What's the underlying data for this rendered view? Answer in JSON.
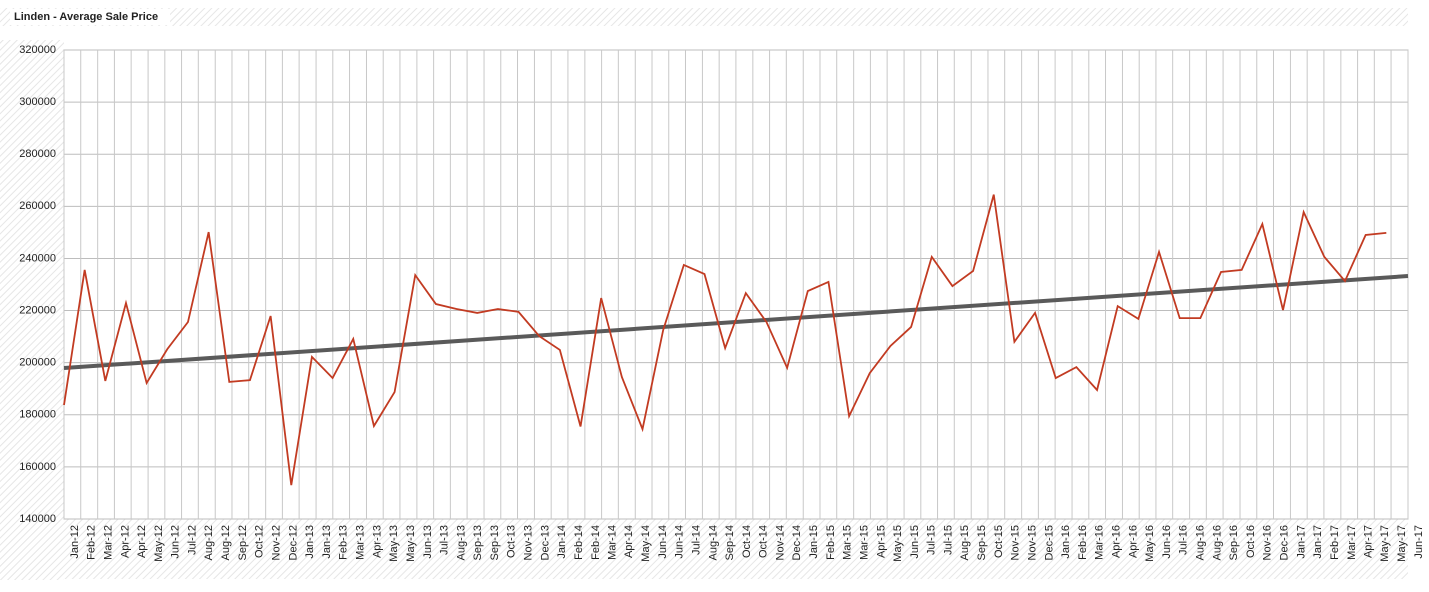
{
  "chart_data": {
    "type": "line",
    "title": "Linden - Average Sale Price",
    "x": [
      0,
      1,
      2,
      3,
      4,
      5,
      6,
      7,
      8,
      9,
      10,
      11,
      12,
      13,
      14,
      15,
      16,
      17,
      18,
      19,
      20,
      21,
      22,
      23,
      24,
      25,
      26,
      27,
      28,
      29,
      30,
      31,
      32,
      33,
      34,
      35,
      36,
      37,
      38,
      39,
      40,
      41,
      42,
      43,
      44,
      45,
      46,
      47,
      48,
      49,
      50,
      51,
      52,
      53,
      54,
      55,
      56,
      57,
      58,
      59,
      60,
      61,
      62,
      63,
      64
    ],
    "series": [
      {
        "color": "#c23b22",
        "values": [
          183750,
          235600,
          193000,
          222900,
          192200,
          205200,
          215600,
          250100,
          192600,
          193300,
          217900,
          153000,
          202200,
          194100,
          209100,
          175700,
          188700,
          233600,
          222500,
          220600,
          219100,
          220600,
          219500,
          210200,
          204900,
          175500,
          224800,
          194500,
          174500,
          212500,
          237500,
          234000,
          205600,
          226700,
          215600,
          198000,
          227500,
          231000,
          179500,
          196000,
          206400,
          213700,
          240600,
          229400,
          235200,
          264500,
          208000,
          219100,
          194100,
          198300,
          189500,
          221700,
          216800,
          242500,
          217100,
          217100,
          234800,
          235600,
          253200,
          220200,
          257800,
          240600,
          231300,
          249000,
          249800
        ]
      }
    ],
    "trendline": {
      "color": "#5a5a5a",
      "x": [
        0,
        65.05
      ],
      "values": [
        197950,
        233260
      ]
    },
    "xlim": [
      0,
      65.05
    ],
    "xticks": [
      {
        "value": 0,
        "label": "Jan-12"
      },
      {
        "value": 0.81,
        "label": "Feb-12"
      },
      {
        "value": 1.63,
        "label": "Mar-12"
      },
      {
        "value": 2.44,
        "label": "Apr-12"
      },
      {
        "value": 3.25,
        "label": "Apr-12"
      },
      {
        "value": 4.07,
        "label": "May-12"
      },
      {
        "value": 4.88,
        "label": "Jun-12"
      },
      {
        "value": 5.69,
        "label": "Jul-12"
      },
      {
        "value": 6.5,
        "label": "Aug-12"
      },
      {
        "value": 7.32,
        "label": "Aug-12"
      },
      {
        "value": 8.13,
        "label": "Sep-12"
      },
      {
        "value": 8.94,
        "label": "Oct-12"
      },
      {
        "value": 9.76,
        "label": "Nov-12"
      },
      {
        "value": 10.57,
        "label": "Dec-12"
      },
      {
        "value": 11.38,
        "label": "Jan-13"
      },
      {
        "value": 12.2,
        "label": "Jan-13"
      },
      {
        "value": 13.01,
        "label": "Feb-13"
      },
      {
        "value": 13.82,
        "label": "Mar-13"
      },
      {
        "value": 14.64,
        "label": "Apr-13"
      },
      {
        "value": 15.45,
        "label": "May-13"
      },
      {
        "value": 16.26,
        "label": "May-13"
      },
      {
        "value": 17.08,
        "label": "Jun-13"
      },
      {
        "value": 17.89,
        "label": "Jul-13"
      },
      {
        "value": 18.7,
        "label": "Aug-13"
      },
      {
        "value": 19.51,
        "label": "Sep-13"
      },
      {
        "value": 20.33,
        "label": "Sep-13"
      },
      {
        "value": 21.14,
        "label": "Oct-13"
      },
      {
        "value": 21.95,
        "label": "Nov-13"
      },
      {
        "value": 22.77,
        "label": "Dec-13"
      },
      {
        "value": 23.58,
        "label": "Jan-14"
      },
      {
        "value": 24.39,
        "label": "Feb-14"
      },
      {
        "value": 25.21,
        "label": "Feb-14"
      },
      {
        "value": 26.02,
        "label": "Mar-14"
      },
      {
        "value": 26.83,
        "label": "Apr-14"
      },
      {
        "value": 27.65,
        "label": "May-14"
      },
      {
        "value": 28.46,
        "label": "Jun-14"
      },
      {
        "value": 29.27,
        "label": "Jun-14"
      },
      {
        "value": 30.08,
        "label": "Jul-14"
      },
      {
        "value": 30.9,
        "label": "Aug-14"
      },
      {
        "value": 31.71,
        "label": "Sep-14"
      },
      {
        "value": 32.52,
        "label": "Oct-14"
      },
      {
        "value": 33.34,
        "label": "Oct-14"
      },
      {
        "value": 34.15,
        "label": "Nov-14"
      },
      {
        "value": 34.96,
        "label": "Dec-14"
      },
      {
        "value": 35.78,
        "label": "Jan-15"
      },
      {
        "value": 36.59,
        "label": "Feb-15"
      },
      {
        "value": 37.4,
        "label": "Mar-15"
      },
      {
        "value": 38.22,
        "label": "Mar-15"
      },
      {
        "value": 39.03,
        "label": "Apr-15"
      },
      {
        "value": 39.84,
        "label": "May-15"
      },
      {
        "value": 40.66,
        "label": "Jun-15"
      },
      {
        "value": 41.47,
        "label": "Jul-15"
      },
      {
        "value": 42.28,
        "label": "Jul-15"
      },
      {
        "value": 43.09,
        "label": "Aug-15"
      },
      {
        "value": 43.91,
        "label": "Sep-15"
      },
      {
        "value": 44.72,
        "label": "Oct-15"
      },
      {
        "value": 45.53,
        "label": "Nov-15"
      },
      {
        "value": 46.35,
        "label": "Nov-15"
      },
      {
        "value": 47.16,
        "label": "Dec-15"
      },
      {
        "value": 47.97,
        "label": "Jan-16"
      },
      {
        "value": 48.79,
        "label": "Feb-16"
      },
      {
        "value": 49.6,
        "label": "Mar-16"
      },
      {
        "value": 50.41,
        "label": "Apr-16"
      },
      {
        "value": 51.23,
        "label": "Apr-16"
      },
      {
        "value": 52.04,
        "label": "May-16"
      },
      {
        "value": 52.85,
        "label": "Jun-16"
      },
      {
        "value": 53.66,
        "label": "Jul-16"
      },
      {
        "value": 54.48,
        "label": "Aug-16"
      },
      {
        "value": 55.29,
        "label": "Aug-16"
      },
      {
        "value": 56.1,
        "label": "Sep-16"
      },
      {
        "value": 56.92,
        "label": "Oct-16"
      },
      {
        "value": 57.73,
        "label": "Nov-16"
      },
      {
        "value": 58.54,
        "label": "Dec-16"
      },
      {
        "value": 59.36,
        "label": "Jan-17"
      },
      {
        "value": 60.17,
        "label": "Jan-17"
      },
      {
        "value": 60.98,
        "label": "Feb-17"
      },
      {
        "value": 61.8,
        "label": "Mar-17"
      },
      {
        "value": 62.61,
        "label": "Apr-17"
      },
      {
        "value": 63.42,
        "label": "May-17"
      },
      {
        "value": 64.23,
        "label": "May-17"
      },
      {
        "value": 65.05,
        "label": "Jun-17"
      }
    ],
    "ylim": [
      140000,
      320000
    ],
    "yticks": [
      140000,
      160000,
      180000,
      200000,
      220000,
      240000,
      260000,
      280000,
      300000,
      320000
    ],
    "grid": true
  }
}
